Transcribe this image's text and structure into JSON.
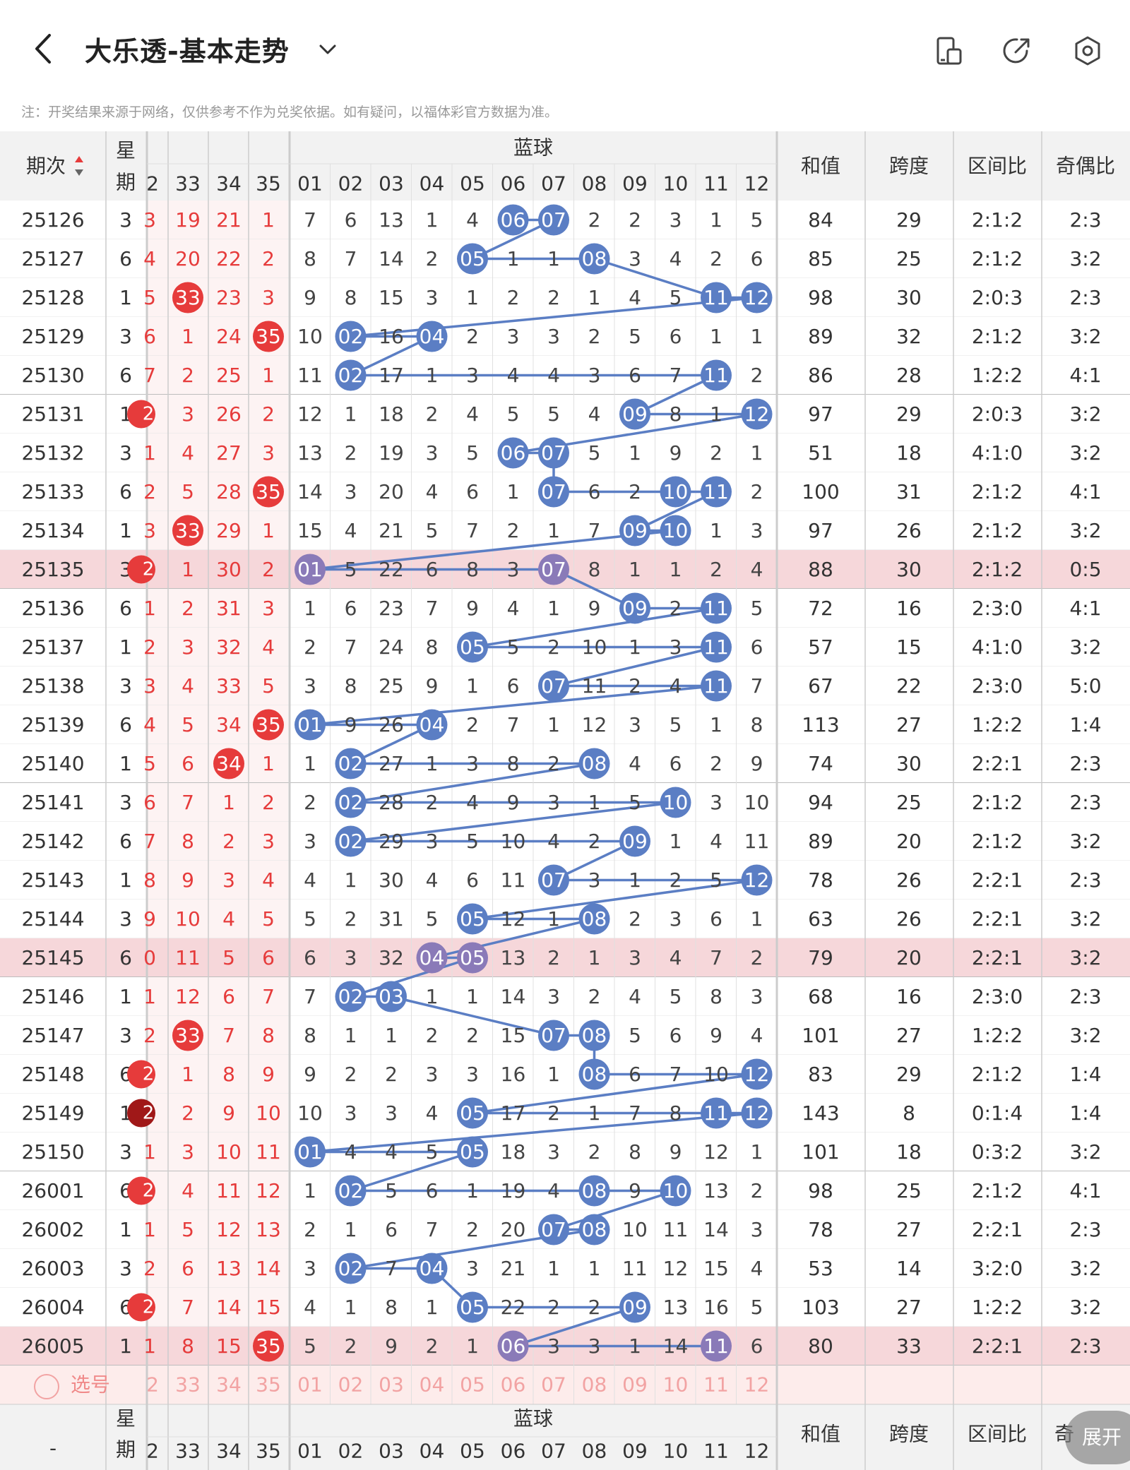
{
  "header": {
    "title": "大乐透-基本走势",
    "notice": "注：开奖结果来源于网络，仅供参考不作为兑奖依据。如有疑问，以福体彩官方数据为准。"
  },
  "columns": {
    "period": "期次",
    "weekday_1": "星",
    "weekday_2": "期",
    "blue_group": "蓝球",
    "sum": "和值",
    "span": "跨度",
    "zone_ratio": "区间比",
    "odd_even": "奇偶比"
  },
  "red_headers": [
    "2",
    "33",
    "34",
    "35"
  ],
  "blue_headers": [
    "01",
    "02",
    "03",
    "04",
    "05",
    "06",
    "07",
    "08",
    "09",
    "10",
    "11",
    "12"
  ],
  "rows": [
    {
      "period": "25126",
      "wd": "3",
      "red": [
        "3",
        "19",
        "21",
        "1"
      ],
      "hit": [
        0,
        0,
        0,
        0
      ],
      "blue": [
        "7",
        "6",
        "13",
        "1",
        "4",
        "06",
        "07",
        "2",
        "2",
        "3",
        "1",
        "5"
      ],
      "sum": "84",
      "span": "29",
      "zone": "2:1:2",
      "oe": "2:3"
    },
    {
      "period": "25127",
      "wd": "6",
      "red": [
        "4",
        "20",
        "22",
        "2"
      ],
      "hit": [
        0,
        0,
        0,
        0
      ],
      "blue": [
        "8",
        "7",
        "14",
        "2",
        "05",
        "1",
        "1",
        "08",
        "3",
        "4",
        "2",
        "6"
      ],
      "sum": "85",
      "span": "25",
      "zone": "2:1:2",
      "oe": "3:2"
    },
    {
      "period": "25128",
      "wd": "1",
      "red": [
        "5",
        "33",
        "23",
        "3"
      ],
      "hit": [
        0,
        1,
        0,
        0
      ],
      "blue": [
        "9",
        "8",
        "15",
        "3",
        "1",
        "2",
        "2",
        "1",
        "4",
        "5",
        "11",
        "12"
      ],
      "sum": "98",
      "span": "30",
      "zone": "2:0:3",
      "oe": "2:3"
    },
    {
      "period": "25129",
      "wd": "3",
      "red": [
        "6",
        "1",
        "24",
        "35"
      ],
      "hit": [
        0,
        0,
        0,
        1
      ],
      "blue": [
        "10",
        "02",
        "16",
        "04",
        "2",
        "3",
        "3",
        "2",
        "5",
        "6",
        "1",
        "1"
      ],
      "sum": "89",
      "span": "32",
      "zone": "2:1:2",
      "oe": "3:2"
    },
    {
      "period": "25130",
      "wd": "6",
      "red": [
        "7",
        "2",
        "25",
        "1"
      ],
      "hit": [
        0,
        0,
        0,
        0
      ],
      "blue": [
        "11",
        "02",
        "17",
        "1",
        "3",
        "4",
        "4",
        "3",
        "6",
        "7",
        "11",
        "2"
      ],
      "sum": "86",
      "span": "28",
      "zone": "1:2:2",
      "oe": "4:1"
    },
    {
      "period": "25131",
      "wd": "1",
      "red": [
        "2",
        "3",
        "26",
        "2"
      ],
      "hit": [
        1,
        0,
        0,
        0
      ],
      "blue": [
        "12",
        "1",
        "18",
        "2",
        "4",
        "5",
        "5",
        "4",
        "09",
        "8",
        "1",
        "12"
      ],
      "sum": "97",
      "span": "29",
      "zone": "2:0:3",
      "oe": "3:2"
    },
    {
      "period": "25132",
      "wd": "3",
      "red": [
        "1",
        "4",
        "27",
        "3"
      ],
      "hit": [
        0,
        0,
        0,
        0
      ],
      "blue": [
        "13",
        "2",
        "19",
        "3",
        "5",
        "06",
        "07",
        "5",
        "1",
        "9",
        "2",
        "1"
      ],
      "sum": "51",
      "span": "18",
      "zone": "4:1:0",
      "oe": "3:2"
    },
    {
      "period": "25133",
      "wd": "6",
      "red": [
        "2",
        "5",
        "28",
        "35"
      ],
      "hit": [
        0,
        0,
        0,
        1
      ],
      "blue": [
        "14",
        "3",
        "20",
        "4",
        "6",
        "1",
        "07",
        "6",
        "2",
        "10",
        "11",
        "2"
      ],
      "sum": "100",
      "span": "31",
      "zone": "2:1:2",
      "oe": "4:1"
    },
    {
      "period": "25134",
      "wd": "1",
      "red": [
        "3",
        "33",
        "29",
        "1"
      ],
      "hit": [
        0,
        1,
        0,
        0
      ],
      "blue": [
        "15",
        "4",
        "21",
        "5",
        "7",
        "2",
        "1",
        "7",
        "09",
        "10",
        "1",
        "3"
      ],
      "sum": "97",
      "span": "26",
      "zone": "2:1:2",
      "oe": "3:2"
    },
    {
      "period": "25135",
      "wd": "3",
      "red": [
        "2",
        "1",
        "30",
        "2"
      ],
      "hit": [
        1,
        0,
        0,
        0
      ],
      "blue": [
        "01",
        "5",
        "22",
        "6",
        "8",
        "3",
        "07",
        "8",
        "1",
        "1",
        "2",
        "4"
      ],
      "sum": "88",
      "span": "30",
      "zone": "2:1:2",
      "oe": "0:5"
    },
    {
      "period": "25136",
      "wd": "6",
      "red": [
        "1",
        "2",
        "31",
        "3"
      ],
      "hit": [
        0,
        0,
        0,
        0
      ],
      "blue": [
        "1",
        "6",
        "23",
        "7",
        "9",
        "4",
        "1",
        "9",
        "09",
        "2",
        "11",
        "5"
      ],
      "sum": "72",
      "span": "16",
      "zone": "2:3:0",
      "oe": "4:1"
    },
    {
      "period": "25137",
      "wd": "1",
      "red": [
        "2",
        "3",
        "32",
        "4"
      ],
      "hit": [
        0,
        0,
        0,
        0
      ],
      "blue": [
        "2",
        "7",
        "24",
        "8",
        "05",
        "5",
        "2",
        "10",
        "1",
        "3",
        "11",
        "6"
      ],
      "sum": "57",
      "span": "15",
      "zone": "4:1:0",
      "oe": "3:2"
    },
    {
      "period": "25138",
      "wd": "3",
      "red": [
        "3",
        "4",
        "33",
        "5"
      ],
      "hit": [
        0,
        0,
        0,
        0
      ],
      "blue": [
        "3",
        "8",
        "25",
        "9",
        "1",
        "6",
        "07",
        "11",
        "2",
        "4",
        "11",
        "7"
      ],
      "sum": "67",
      "span": "22",
      "zone": "2:3:0",
      "oe": "5:0"
    },
    {
      "period": "25139",
      "wd": "6",
      "red": [
        "4",
        "5",
        "34",
        "35"
      ],
      "hit": [
        0,
        0,
        0,
        1
      ],
      "blue": [
        "01",
        "9",
        "26",
        "04",
        "2",
        "7",
        "1",
        "12",
        "3",
        "5",
        "1",
        "8"
      ],
      "sum": "113",
      "span": "27",
      "zone": "1:2:2",
      "oe": "1:4"
    },
    {
      "period": "25140",
      "wd": "1",
      "red": [
        "5",
        "6",
        "34",
        "1"
      ],
      "hit": [
        0,
        0,
        1,
        0
      ],
      "blue": [
        "1",
        "02",
        "27",
        "1",
        "3",
        "8",
        "2",
        "08",
        "4",
        "6",
        "2",
        "9"
      ],
      "sum": "74",
      "span": "30",
      "zone": "2:2:1",
      "oe": "2:3"
    },
    {
      "period": "25141",
      "wd": "3",
      "red": [
        "6",
        "7",
        "1",
        "2"
      ],
      "hit": [
        0,
        0,
        0,
        0
      ],
      "blue": [
        "2",
        "02",
        "28",
        "2",
        "4",
        "9",
        "3",
        "1",
        "5",
        "10",
        "3",
        "10"
      ],
      "sum": "94",
      "span": "25",
      "zone": "2:1:2",
      "oe": "2:3"
    },
    {
      "period": "25142",
      "wd": "6",
      "red": [
        "7",
        "8",
        "2",
        "3"
      ],
      "hit": [
        0,
        0,
        0,
        0
      ],
      "blue": [
        "3",
        "02",
        "29",
        "3",
        "5",
        "10",
        "4",
        "2",
        "09",
        "1",
        "4",
        "11"
      ],
      "sum": "89",
      "span": "20",
      "zone": "2:1:2",
      "oe": "3:2"
    },
    {
      "period": "25143",
      "wd": "1",
      "red": [
        "8",
        "9",
        "3",
        "4"
      ],
      "hit": [
        0,
        0,
        0,
        0
      ],
      "blue": [
        "4",
        "1",
        "30",
        "4",
        "6",
        "11",
        "07",
        "3",
        "1",
        "2",
        "5",
        "12"
      ],
      "sum": "78",
      "span": "26",
      "zone": "2:2:1",
      "oe": "2:3"
    },
    {
      "period": "25144",
      "wd": "3",
      "red": [
        "9",
        "10",
        "4",
        "5"
      ],
      "hit": [
        0,
        0,
        0,
        0
      ],
      "blue": [
        "5",
        "2",
        "31",
        "5",
        "05",
        "12",
        "1",
        "08",
        "2",
        "3",
        "6",
        "1"
      ],
      "sum": "63",
      "span": "26",
      "zone": "2:2:1",
      "oe": "3:2"
    },
    {
      "period": "25145",
      "wd": "6",
      "red": [
        "0",
        "11",
        "5",
        "6"
      ],
      "hit": [
        0,
        0,
        0,
        0
      ],
      "blue": [
        "6",
        "3",
        "32",
        "04",
        "05",
        "13",
        "2",
        "1",
        "3",
        "4",
        "7",
        "2"
      ],
      "sum": "79",
      "span": "20",
      "zone": "2:2:1",
      "oe": "3:2"
    },
    {
      "period": "25146",
      "wd": "1",
      "red": [
        "1",
        "12",
        "6",
        "7"
      ],
      "hit": [
        0,
        0,
        0,
        0
      ],
      "blue": [
        "7",
        "02",
        "03",
        "1",
        "1",
        "14",
        "3",
        "2",
        "4",
        "5",
        "8",
        "3"
      ],
      "sum": "68",
      "span": "16",
      "zone": "2:3:0",
      "oe": "2:3"
    },
    {
      "period": "25147",
      "wd": "3",
      "red": [
        "2",
        "33",
        "7",
        "8"
      ],
      "hit": [
        0,
        1,
        0,
        0
      ],
      "blue": [
        "8",
        "1",
        "1",
        "2",
        "2",
        "15",
        "07",
        "08",
        "5",
        "6",
        "9",
        "4"
      ],
      "sum": "101",
      "span": "27",
      "zone": "1:2:2",
      "oe": "3:2"
    },
    {
      "period": "25148",
      "wd": "6",
      "red": [
        "2",
        "1",
        "8",
        "9"
      ],
      "hit": [
        1,
        0,
        0,
        0
      ],
      "blue": [
        "9",
        "2",
        "2",
        "3",
        "3",
        "16",
        "1",
        "08",
        "6",
        "7",
        "10",
        "12"
      ],
      "sum": "83",
      "span": "29",
      "zone": "2:1:2",
      "oe": "1:4"
    },
    {
      "period": "25149",
      "wd": "1",
      "red": [
        "2",
        "2",
        "9",
        "10"
      ],
      "hit": [
        2,
        0,
        0,
        0
      ],
      "blue": [
        "10",
        "3",
        "3",
        "4",
        "05",
        "17",
        "2",
        "1",
        "7",
        "8",
        "11",
        "12"
      ],
      "sum": "143",
      "span": "8",
      "zone": "0:1:4",
      "oe": "1:4"
    },
    {
      "period": "25150",
      "wd": "3",
      "red": [
        "1",
        "3",
        "10",
        "11"
      ],
      "hit": [
        0,
        0,
        0,
        0
      ],
      "blue": [
        "01",
        "4",
        "4",
        "5",
        "05",
        "18",
        "3",
        "2",
        "8",
        "9",
        "12",
        "1"
      ],
      "sum": "101",
      "span": "18",
      "zone": "0:3:2",
      "oe": "3:2"
    },
    {
      "period": "26001",
      "wd": "6",
      "red": [
        "2",
        "4",
        "11",
        "12"
      ],
      "hit": [
        1,
        0,
        0,
        0
      ],
      "blue": [
        "1",
        "02",
        "5",
        "6",
        "1",
        "19",
        "4",
        "08",
        "9",
        "10",
        "13",
        "2"
      ],
      "sum": "98",
      "span": "25",
      "zone": "2:1:2",
      "oe": "4:1"
    },
    {
      "period": "26002",
      "wd": "1",
      "red": [
        "1",
        "5",
        "12",
        "13"
      ],
      "hit": [
        0,
        0,
        0,
        0
      ],
      "blue": [
        "2",
        "1",
        "6",
        "7",
        "2",
        "20",
        "07",
        "08",
        "10",
        "11",
        "14",
        "3"
      ],
      "sum": "78",
      "span": "27",
      "zone": "2:2:1",
      "oe": "2:3"
    },
    {
      "period": "26003",
      "wd": "3",
      "red": [
        "2",
        "6",
        "13",
        "14"
      ],
      "hit": [
        0,
        0,
        0,
        0
      ],
      "blue": [
        "3",
        "02",
        "7",
        "04",
        "3",
        "21",
        "1",
        "1",
        "11",
        "12",
        "15",
        "4"
      ],
      "sum": "53",
      "span": "14",
      "zone": "3:2:0",
      "oe": "3:2"
    },
    {
      "period": "26004",
      "wd": "6",
      "red": [
        "2",
        "7",
        "14",
        "15"
      ],
      "hit": [
        1,
        0,
        0,
        0
      ],
      "blue": [
        "4",
        "1",
        "8",
        "1",
        "05",
        "22",
        "2",
        "2",
        "09",
        "13",
        "16",
        "5"
      ],
      "sum": "103",
      "span": "27",
      "zone": "1:2:2",
      "oe": "3:2"
    },
    {
      "period": "26005",
      "wd": "1",
      "red": [
        "1",
        "8",
        "15",
        "35"
      ],
      "hit": [
        0,
        0,
        0,
        1
      ],
      "blue": [
        "5",
        "2",
        "9",
        "2",
        "1",
        "06",
        "3",
        "3",
        "1",
        "14",
        "11",
        "6"
      ],
      "sum": "80",
      "span": "33",
      "zone": "2:2:1",
      "oe": "2:3"
    }
  ],
  "highlight_periods": [
    "25135",
    "25145",
    "26005"
  ],
  "select_row": {
    "label": "选号"
  },
  "footer": {
    "period": "-",
    "weekday_1": "星",
    "weekday_2": "期",
    "blue_group": "蓝球",
    "sum": "和值",
    "span": "跨度",
    "zone_ratio": "区间比",
    "odd_even": "奇"
  },
  "expand_button": "展开",
  "colors": {
    "red": "#e63b3b",
    "dark_red": "#a01818",
    "blue": "#5b7ec4",
    "purple": "#8a7ab8",
    "highlight_row": "#f6d7da",
    "select_row": "#fdeceb",
    "header_bg": "#f2f2f2"
  },
  "icons": {
    "back": "back-arrow-icon",
    "dropdown": "chevron-down-icon",
    "layout": "phone-layout-icon",
    "share": "share-icon",
    "settings": "settings-icon"
  }
}
